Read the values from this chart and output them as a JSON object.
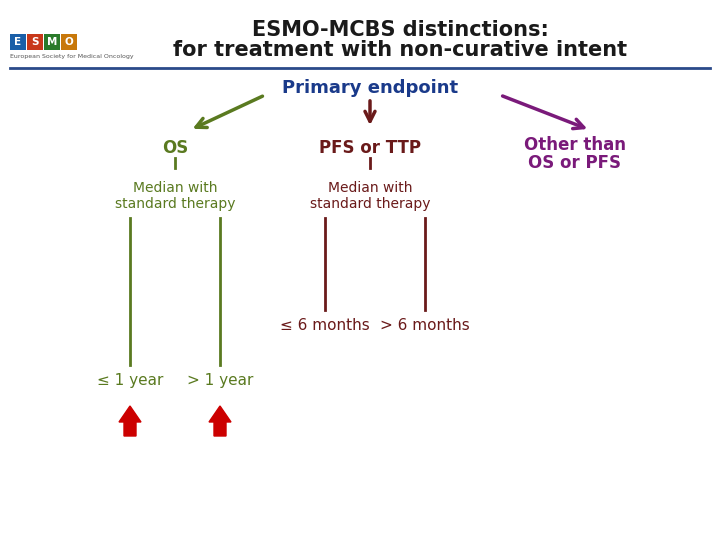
{
  "title_line1": "ESMO-MCBS distinctions:",
  "title_line2": "for treatment with non-curative intent",
  "title_color": "#1a1a1a",
  "title_fontsize": 15,
  "subtitle": "Primary endpoint",
  "subtitle_color": "#1a3a8a",
  "subtitle_fontsize": 13,
  "bg_color": "#ffffff",
  "divider_color": "#2a4a8a",
  "os_color": "#5a7a20",
  "pfs_color": "#6a1a1a",
  "other_color": "#7a1a7a",
  "red_arrow_color": "#cc0000",
  "main_fontsize": 12,
  "sub_fontsize": 10,
  "leaf_fontsize": 11
}
